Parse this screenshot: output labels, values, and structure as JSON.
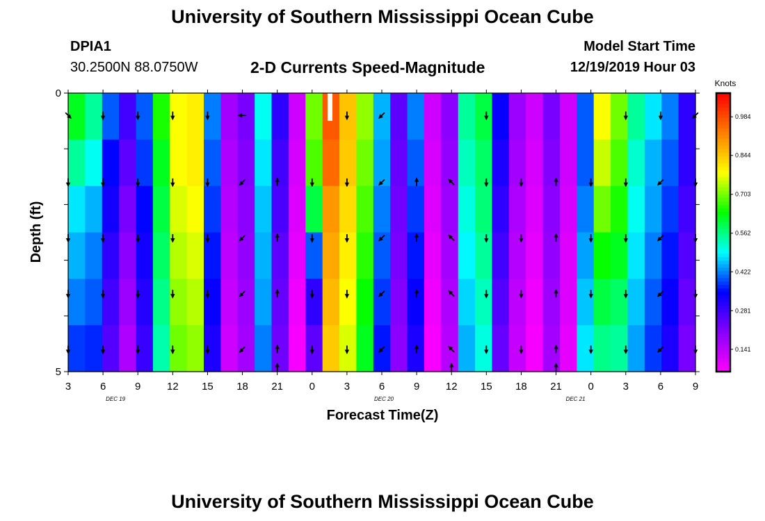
{
  "header": {
    "title": "University of Southern Mississippi Ocean Cube",
    "station_id": "DPIA1",
    "station_coords": "30.2500N 88.0750W",
    "plot_title": "2-D Currents Speed-Magnitude",
    "model_start_label": "Model Start Time",
    "model_start_value": "12/19/2019 Hour 03"
  },
  "footer": {
    "title": "University of Southern Mississippi Ocean Cube"
  },
  "chart_data": {
    "type": "heatmap",
    "title": "2-D Currents Speed-Magnitude",
    "xlabel": "Forecast Time(Z)",
    "ylabel": "Depth (ft)",
    "x_tick_labels": [
      "3",
      "6",
      "9",
      "12",
      "15",
      "18",
      "21",
      "0",
      "3",
      "6",
      "9",
      "12",
      "15",
      "18",
      "21",
      "0",
      "3",
      "6",
      "9"
    ],
    "date_labels": [
      "DEC 19",
      "DEC 20",
      "DEC 21"
    ],
    "y_tick_labels": [
      "0",
      "5"
    ],
    "ylim": [
      0,
      5
    ],
    "y_inverted": true,
    "colorbar": {
      "label": "Knots",
      "ticks": [
        "0.984",
        "0.844",
        "0.703",
        "0.562",
        "0.422",
        "0.281",
        "0.141"
      ],
      "range": [
        0.06,
        1.07
      ],
      "colors": [
        "#ff00ff",
        "#8800ff",
        "#0000ff",
        "#00ffff",
        "#00ff00",
        "#ffff00",
        "#ff8000",
        "#ff0000"
      ]
    },
    "depths": [
      0,
      1,
      2,
      3,
      4,
      5
    ],
    "speed": [
      [
        0.62,
        0.55,
        0.4,
        0.28,
        0.4,
        0.65,
        0.78,
        0.8,
        0.42,
        0.17,
        0.22,
        0.5,
        0.3,
        0.12,
        0.7,
        0.97,
        0.85,
        0.72,
        0.45,
        0.25,
        0.42,
        0.12,
        0.2,
        0.55,
        0.6,
        0.34,
        0.18,
        0.12,
        0.22,
        0.12,
        0.4,
        0.78,
        0.7,
        0.55,
        0.48,
        0.42,
        0.3
      ],
      [
        0.55,
        0.5,
        0.35,
        0.25,
        0.38,
        0.62,
        0.78,
        0.8,
        0.4,
        0.16,
        0.21,
        0.48,
        0.28,
        0.11,
        0.68,
        0.95,
        0.84,
        0.7,
        0.44,
        0.24,
        0.4,
        0.11,
        0.19,
        0.53,
        0.58,
        0.32,
        0.17,
        0.11,
        0.21,
        0.12,
        0.4,
        0.75,
        0.68,
        0.52,
        0.45,
        0.4,
        0.3
      ],
      [
        0.48,
        0.45,
        0.33,
        0.22,
        0.35,
        0.6,
        0.76,
        0.78,
        0.38,
        0.15,
        0.2,
        0.46,
        0.27,
        0.1,
        0.6,
        0.9,
        0.82,
        0.68,
        0.42,
        0.23,
        0.38,
        0.1,
        0.18,
        0.51,
        0.57,
        0.3,
        0.16,
        0.1,
        0.2,
        0.11,
        0.42,
        0.7,
        0.65,
        0.5,
        0.44,
        0.38,
        0.28
      ],
      [
        0.45,
        0.42,
        0.3,
        0.2,
        0.33,
        0.58,
        0.74,
        0.76,
        0.36,
        0.14,
        0.19,
        0.45,
        0.25,
        0.09,
        0.4,
        0.88,
        0.8,
        0.66,
        0.4,
        0.22,
        0.36,
        0.09,
        0.17,
        0.49,
        0.55,
        0.28,
        0.15,
        0.09,
        0.19,
        0.1,
        0.44,
        0.64,
        0.62,
        0.48,
        0.42,
        0.36,
        0.26
      ],
      [
        0.42,
        0.4,
        0.28,
        0.18,
        0.31,
        0.56,
        0.72,
        0.74,
        0.34,
        0.13,
        0.18,
        0.44,
        0.24,
        0.08,
        0.3,
        0.86,
        0.78,
        0.64,
        0.38,
        0.21,
        0.34,
        0.08,
        0.16,
        0.47,
        0.53,
        0.26,
        0.14,
        0.08,
        0.18,
        0.1,
        0.46,
        0.6,
        0.58,
        0.46,
        0.4,
        0.34,
        0.24
      ],
      [
        0.38,
        0.37,
        0.26,
        0.16,
        0.29,
        0.54,
        0.7,
        0.72,
        0.32,
        0.12,
        0.17,
        0.42,
        0.23,
        0.07,
        0.25,
        0.84,
        0.76,
        0.62,
        0.36,
        0.2,
        0.32,
        0.07,
        0.15,
        0.45,
        0.51,
        0.24,
        0.13,
        0.07,
        0.17,
        0.09,
        0.48,
        0.56,
        0.55,
        0.44,
        0.38,
        0.32,
        0.22
      ]
    ],
    "arrow_direction": [
      "S",
      "S",
      "S",
      "S",
      "S",
      "SW",
      "N",
      "S",
      "S",
      "SW",
      "N",
      "NW",
      "S",
      "S",
      "N",
      "S",
      "S",
      "SW",
      "S"
    ],
    "arrow_top_row": [
      "SE",
      "S",
      "S",
      "S",
      "S",
      "W",
      "",
      "",
      "S",
      "SW",
      "",
      "",
      "S",
      "",
      "",
      "",
      "S",
      "S",
      "SW"
    ]
  }
}
